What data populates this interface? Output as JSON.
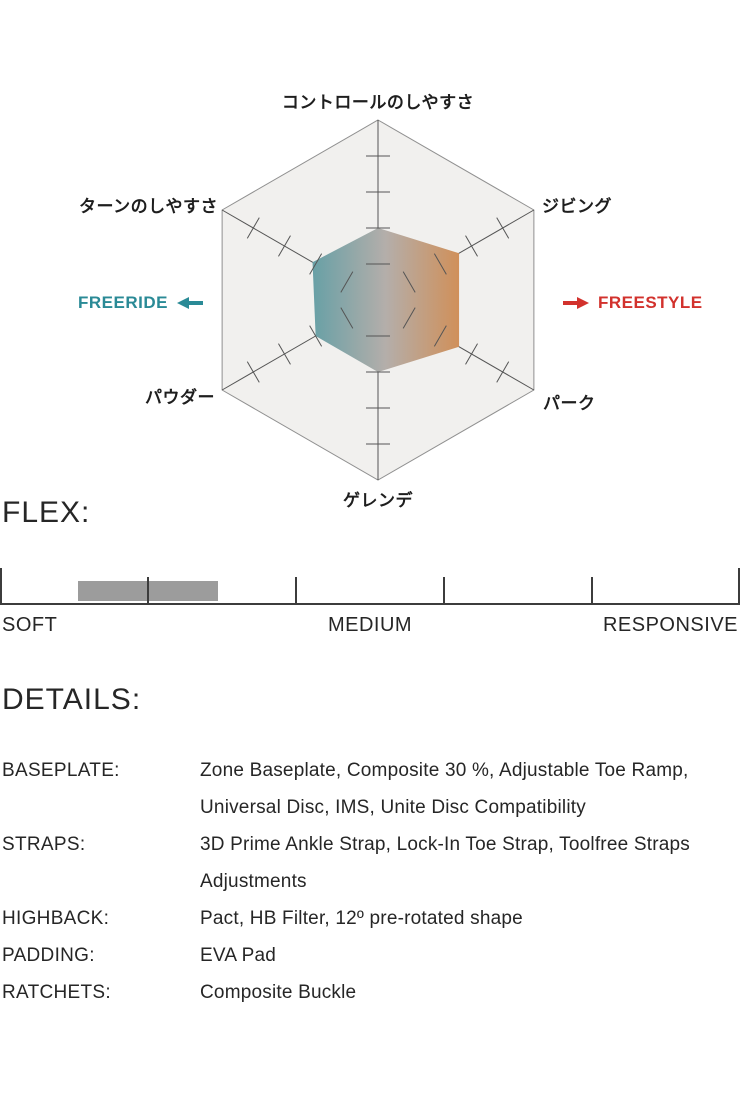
{
  "chart_data": [
    {
      "type": "radar",
      "title": "",
      "categories": [
        "コントロールのしやすさ",
        "ジビング",
        "パーク",
        "ゲレンデ",
        "パウダー",
        "ターンのしやすさ"
      ],
      "values": [
        2,
        2.6,
        2.6,
        2,
        2,
        2.1
      ],
      "scale_min": 0,
      "scale_max": 5,
      "axis_ticks": [
        1,
        2,
        3,
        4
      ],
      "grid": "hexagon-outline-only",
      "gradient": [
        "#68a0a6",
        "#b4aeaa",
        "#d0905a"
      ],
      "hex_fill": "#f1f0ee",
      "hex_stroke": "#909090",
      "axis_color": "#555555",
      "annotations": [
        {
          "text": "FREERIDE",
          "side": "left",
          "arrow": "left",
          "color": "#2a8a96"
        },
        {
          "text": "FREESTYLE",
          "side": "right",
          "arrow": "right",
          "color": "#d2322d"
        }
      ]
    },
    {
      "type": "linear-gauge",
      "title": "FLEX:",
      "labels": [
        "SOFT",
        "MEDIUM",
        "RESPONSIVE"
      ],
      "range": [
        0,
        5
      ],
      "value": 1,
      "bar_halfwidth": 0.47,
      "bar_color": "#9c9c9c"
    }
  ],
  "details": {
    "title": "DETAILS:",
    "rows": [
      {
        "label": "BASEPLATE:",
        "value": "Zone Baseplate, Composite 30 %, Adjustable Toe Ramp, Universal Disc, IMS, Unite Disc Compatibility"
      },
      {
        "label": "STRAPS:",
        "value": "3D Prime Ankle Strap, Lock-In Toe Strap, Toolfree Straps Adjustments"
      },
      {
        "label": "HIGHBACK:",
        "value": "Pact, HB Filter, 12º pre-rotated shape"
      },
      {
        "label": "PADDING:",
        "value": "EVA Pad"
      },
      {
        "label": "RATCHETS:",
        "value": "Composite Buckle"
      }
    ]
  }
}
